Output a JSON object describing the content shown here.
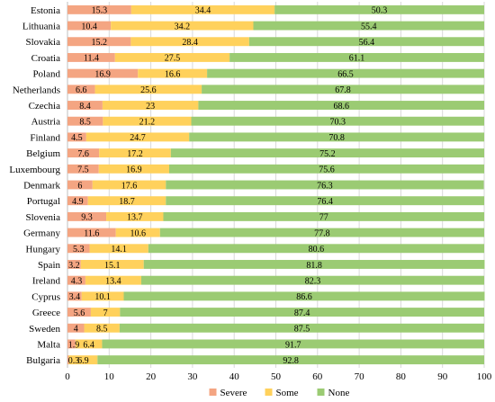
{
  "chart_data": {
    "type": "bar",
    "orientation": "horizontal",
    "stacked": true,
    "categories": [
      "Estonia",
      "Lithuania",
      "Slovakia",
      "Croatia",
      "Poland",
      "Netherlands",
      "Czechia",
      "Austria",
      "Finland",
      "Belgium",
      "Luxembourg",
      "Denmark",
      "Portugal",
      "Slovenia",
      "Germany",
      "Hungary",
      "Spain",
      "Ireland",
      "Cyprus",
      "Greece",
      "Sweden",
      "Malta",
      "Bulgaria"
    ],
    "series": [
      {
        "name": "Severe",
        "color": "#F4A582",
        "values": [
          15.3,
          10.4,
          15.2,
          11.4,
          16.9,
          6.6,
          8.4,
          8.5,
          4.5,
          7.6,
          7.5,
          6,
          4.9,
          9.3,
          11.6,
          5.3,
          3.2,
          4.3,
          3.4,
          5.6,
          4,
          1.9,
          0.3
        ],
        "labels": [
          "15.3",
          "10.4",
          "15.2",
          "11.4",
          "16.9",
          "6.6",
          "8.4",
          "8.5",
          "4.5",
          "7.6",
          "7.5",
          "6",
          "4.9",
          "9.3",
          "11.6",
          "5.3",
          "3.2",
          "4.3",
          "3.4",
          "5.6",
          "4",
          "1.9",
          "0.3"
        ]
      },
      {
        "name": "Some",
        "color": "#FFD15C",
        "values": [
          34.4,
          34.2,
          28.4,
          27.5,
          16.6,
          25.6,
          23,
          21.2,
          24.7,
          17.2,
          16.9,
          17.6,
          18.7,
          13.7,
          10.6,
          14.1,
          15.1,
          13.4,
          10.1,
          7,
          8.5,
          6.4,
          6.9
        ],
        "labels": [
          "34.4",
          "34.2",
          "28.4",
          "27.5",
          "16.6",
          "25.6",
          "23",
          "21.2",
          "24.7",
          "17.2",
          "16.9",
          "17.6",
          "18.7",
          "13.7",
          "10.6",
          "14.1",
          "15.1",
          "13.4",
          "10.1",
          "7",
          "8.5",
          "6.4",
          "6.9"
        ]
      },
      {
        "name": "None",
        "color": "#9BCB73",
        "values": [
          50.3,
          55.4,
          56.4,
          61.1,
          66.5,
          67.8,
          68.6,
          70.3,
          70.8,
          75.2,
          75.6,
          76.3,
          76.4,
          77,
          77.8,
          80.6,
          81.8,
          82.3,
          86.6,
          87.4,
          87.5,
          91.7,
          92.8
        ],
        "labels": [
          "50.3",
          "55.4",
          "56.4",
          "61.1",
          "66.5",
          "67.8",
          "68.6",
          "70.3",
          "70.8",
          "75.2",
          "75.6",
          "76.3",
          "76.4",
          "77",
          "77.8",
          "80.6",
          "81.8",
          "82.3",
          "86.6",
          "87.4",
          "87.5",
          "91.7",
          "92.8"
        ]
      }
    ],
    "xlim": [
      0,
      100
    ],
    "xticks": [
      "0",
      "10",
      "20",
      "30",
      "40",
      "50",
      "60",
      "70",
      "80",
      "90",
      "100"
    ],
    "grid": "vertical",
    "legend_position": "bottom",
    "title": "",
    "xlabel": "",
    "ylabel": ""
  }
}
